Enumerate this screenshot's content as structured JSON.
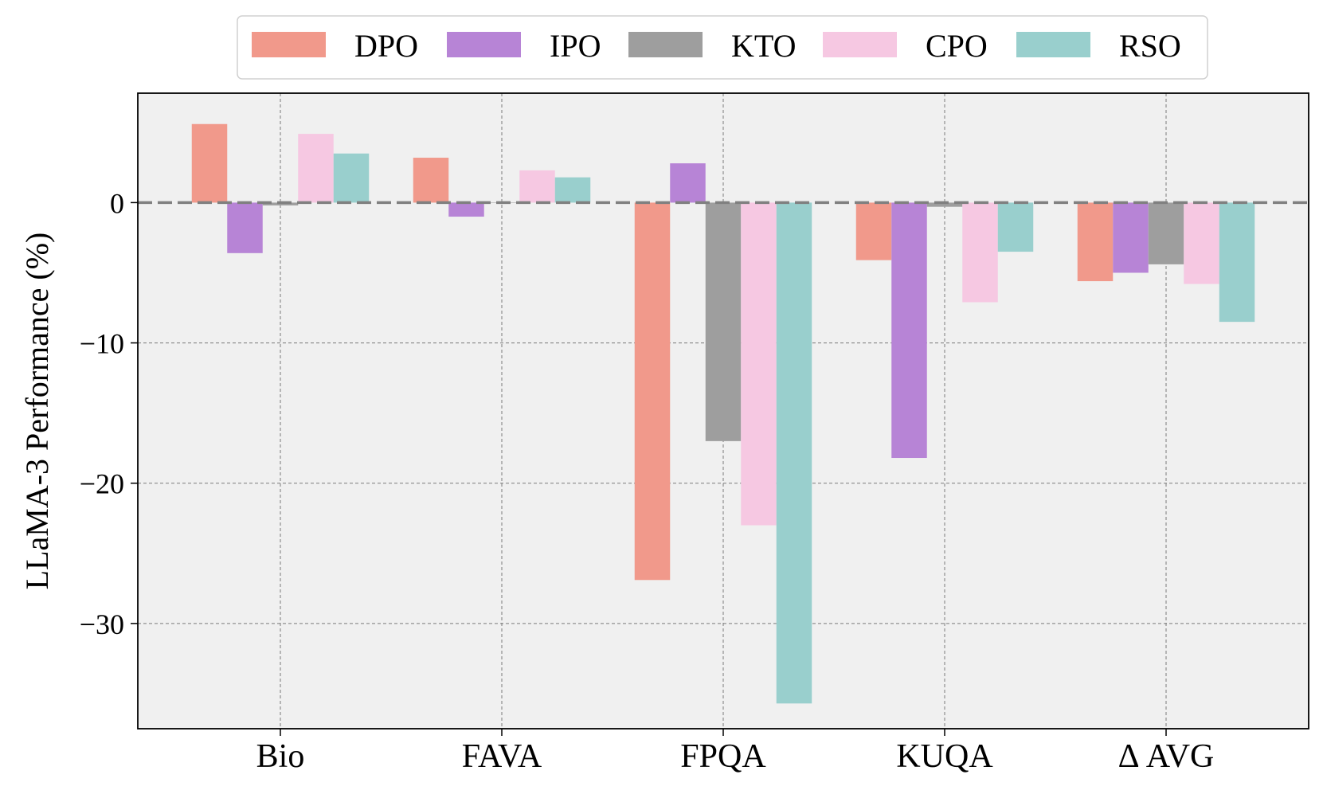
{
  "chart_data": {
    "type": "bar",
    "title": "",
    "xlabel": "",
    "ylabel": "LLaMA-3 Performance (%)",
    "categories": [
      "Bio",
      "FAVA",
      "FPQA",
      "KUQA",
      "Δ AVG"
    ],
    "ylim": [
      -37.5,
      7.8
    ],
    "yticks": [
      0,
      -10,
      -20,
      -30
    ],
    "ytick_labels": [
      "0",
      "−10",
      "−20",
      "−30"
    ],
    "grid": true,
    "legend_position": "top-center",
    "series": [
      {
        "name": "DPO",
        "color": "#f1998b",
        "values": [
          5.6,
          3.2,
          -26.9,
          -4.1,
          -5.6
        ]
      },
      {
        "name": "IPO",
        "color": "#b784d6",
        "values": [
          -3.6,
          -1.0,
          2.8,
          -18.2,
          -5.0
        ]
      },
      {
        "name": "KTO",
        "color": "#9e9e9e",
        "values": [
          -0.2,
          0.0,
          -17.0,
          -0.3,
          -4.4
        ]
      },
      {
        "name": "CPO",
        "color": "#f6c8e2",
        "values": [
          4.9,
          2.3,
          -23.0,
          -7.1,
          -5.8
        ]
      },
      {
        "name": "RSO",
        "color": "#99cfcd",
        "values": [
          3.5,
          1.8,
          -35.7,
          -3.5,
          -8.5
        ]
      }
    ]
  }
}
